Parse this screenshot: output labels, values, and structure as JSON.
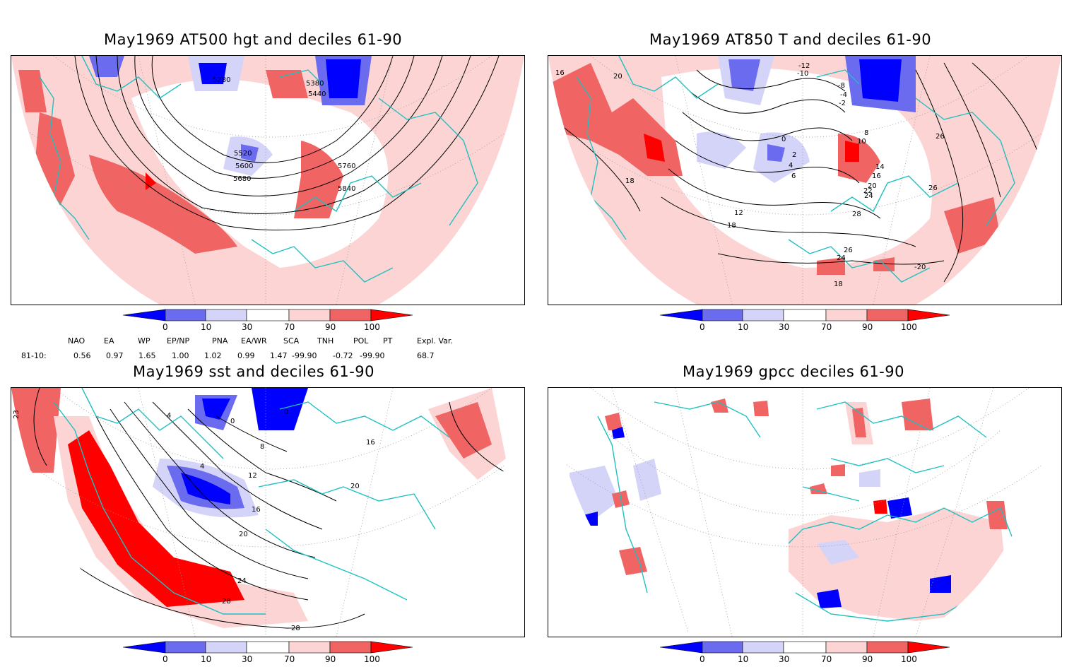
{
  "panels": [
    {
      "title": "May1969 AT500 hgt and deciles 61-90",
      "contour_labels": [
        "5280",
        "5380",
        "5440",
        "5520",
        "5600",
        "5680",
        "5760",
        "5840"
      ]
    },
    {
      "title": "May1969 AT850 T and deciles 61-90",
      "contour_labels": [
        "16",
        "20",
        "-12",
        "-10",
        "-8",
        "-4",
        "-2",
        "0",
        "2",
        "4",
        "6",
        "8",
        "10",
        "12",
        "14",
        "16",
        "18",
        "20",
        "22",
        "24",
        "26",
        "28",
        "26",
        "24",
        "26",
        "18",
        "18",
        "-20"
      ]
    },
    {
      "title": "May1969 sst and deciles 61-90",
      "contour_labels": [
        "23",
        "4",
        "0",
        "0",
        "4",
        "8",
        "12",
        "16",
        "20",
        "24",
        "28",
        "28",
        "16",
        "20"
      ]
    },
    {
      "title": "May1969 gpcc deciles 61-90",
      "contour_labels": []
    }
  ],
  "colorbar": {
    "ticks": [
      "0",
      "10",
      "30",
      "70",
      "90",
      "100"
    ],
    "colors": {
      "dark_blue": "#0000ff",
      "mid_blue": "#6b6bf0",
      "light_blue": "#d4d4f8",
      "white": "#ffffff",
      "light_red": "#fcd4d4",
      "mid_red": "#f06464",
      "dark_red": "#ff0000"
    }
  },
  "indices": {
    "headers": [
      "NAO",
      "EA",
      "WP",
      "EP/NP",
      "PNA",
      "EA/WR",
      "SCA",
      "TNH",
      "POL",
      "PT",
      "Expl. Var."
    ],
    "row_label": "81-10:",
    "values": [
      "0.56",
      "0.97",
      "1.65",
      "1.00",
      "1.02",
      "0.99",
      "1.47",
      "-99.90",
      "-0.72",
      "-99.90",
      "68.7"
    ]
  },
  "map_colors": {
    "coast": "#20c0c0",
    "contour": "#000000",
    "grid": "#999999"
  }
}
